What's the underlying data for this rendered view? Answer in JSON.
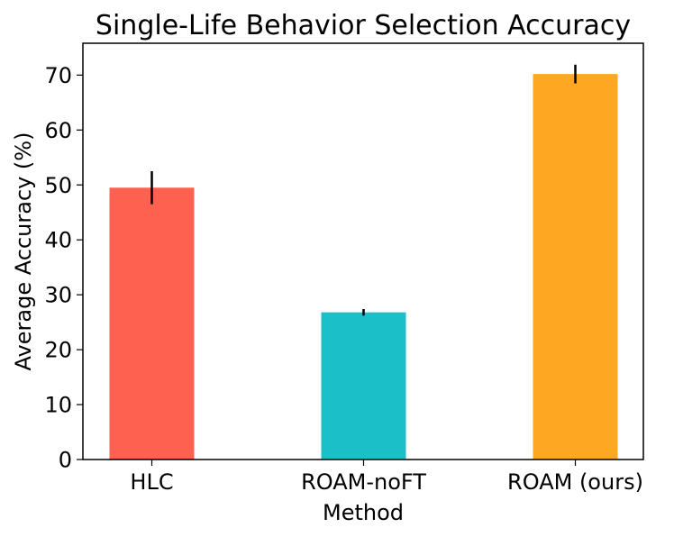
{
  "chart_data": {
    "type": "bar",
    "title": "Single-Life Behavior Selection Accuracy",
    "xlabel": "Method",
    "ylabel": "Average Accuracy (%)",
    "categories": [
      "HLC",
      "ROAM-noFT",
      "ROAM (ours)"
    ],
    "values": [
      49.5,
      26.8,
      70.2
    ],
    "error_bars": [
      3.0,
      0.6,
      1.7
    ],
    "colors": [
      "#ff6150",
      "#1bbfc8",
      "#fea723"
    ],
    "yticks": [
      0,
      10,
      20,
      30,
      40,
      50,
      60,
      70
    ],
    "ylim": [
      0,
      75.8
    ],
    "grid": false
  }
}
